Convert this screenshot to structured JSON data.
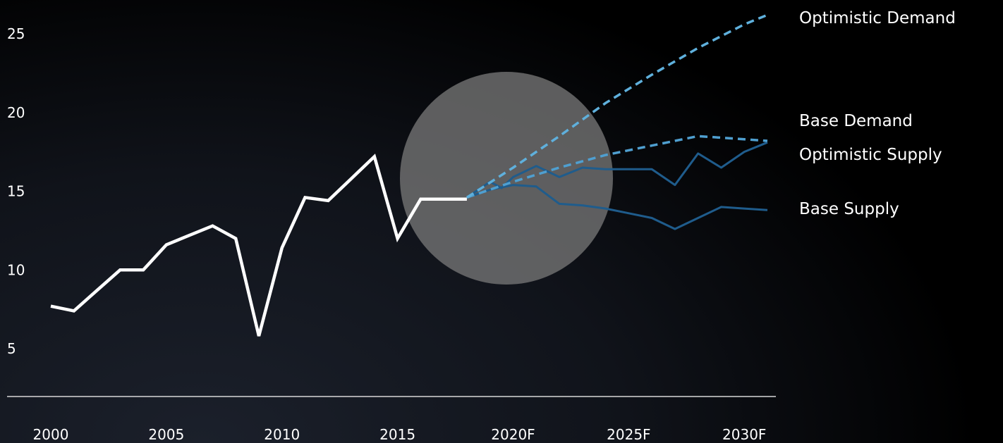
{
  "chart_data": {
    "type": "line",
    "y_ticks": [
      "5",
      "10",
      "15",
      "20",
      "25"
    ],
    "x_ticks": [
      "2000",
      "2005",
      "2010",
      "2015",
      "2020F",
      "2025F",
      "2030F"
    ],
    "ylim": [
      2.5,
      27
    ],
    "xlim": [
      2000,
      2031
    ],
    "grid": false,
    "legend_placement": "right, labels beside series ends",
    "colors": {
      "historical": "#ffffff",
      "optimistic_demand": "#5fb0dc",
      "base_demand": "#4f9fd0",
      "optimistic_supply": "#1f5c8c",
      "base_supply": "#1f5c8c",
      "highlight_circle": "#767676"
    },
    "historical": {
      "x": [
        2000,
        2001,
        2002,
        2003,
        2004,
        2005,
        2006,
        2007,
        2008,
        2009,
        2010,
        2011,
        2012,
        2013,
        2014,
        2015,
        2016,
        2017,
        2018
      ],
      "y": [
        7.7,
        7.4,
        8.7,
        10.0,
        10.0,
        11.6,
        12.2,
        12.8,
        12.0,
        5.8,
        11.4,
        14.6,
        14.4,
        15.8,
        17.2,
        12.0,
        14.5,
        14.5,
        14.5
      ]
    },
    "series": [
      {
        "name": "Optimistic Demand",
        "style": "dashed",
        "x": [
          2018,
          2020,
          2022,
          2024,
          2026,
          2028,
          2030,
          2031
        ],
        "y": [
          14.6,
          16.5,
          18.5,
          20.6,
          22.4,
          24.1,
          25.6,
          26.2
        ]
      },
      {
        "name": "Base Demand",
        "style": "dashed",
        "x": [
          2018,
          2020,
          2022,
          2024,
          2026,
          2028,
          2030,
          2031
        ],
        "y": [
          14.6,
          15.6,
          16.5,
          17.3,
          17.9,
          18.5,
          18.3,
          18.2
        ]
      },
      {
        "name": "Optimistic Supply",
        "style": "solid",
        "x": [
          2018,
          2019,
          2019.5,
          2020,
          2021,
          2022,
          2023,
          2024,
          2025,
          2026,
          2027,
          2028,
          2029,
          2030,
          2031
        ],
        "y": [
          14.6,
          15.6,
          15.2,
          15.9,
          16.6,
          15.9,
          16.5,
          16.4,
          16.4,
          16.4,
          15.4,
          17.4,
          16.5,
          17.5,
          18.1
        ]
      },
      {
        "name": "Base Supply",
        "style": "solid",
        "x": [
          2018,
          2019,
          2020,
          2021,
          2022,
          2023,
          2024,
          2025,
          2026,
          2027,
          2028,
          2029,
          2030,
          2031
        ],
        "y": [
          14.6,
          15.1,
          15.4,
          15.3,
          14.2,
          14.1,
          13.9,
          13.6,
          13.3,
          12.6,
          13.3,
          14.0,
          13.9,
          13.8
        ]
      }
    ]
  }
}
